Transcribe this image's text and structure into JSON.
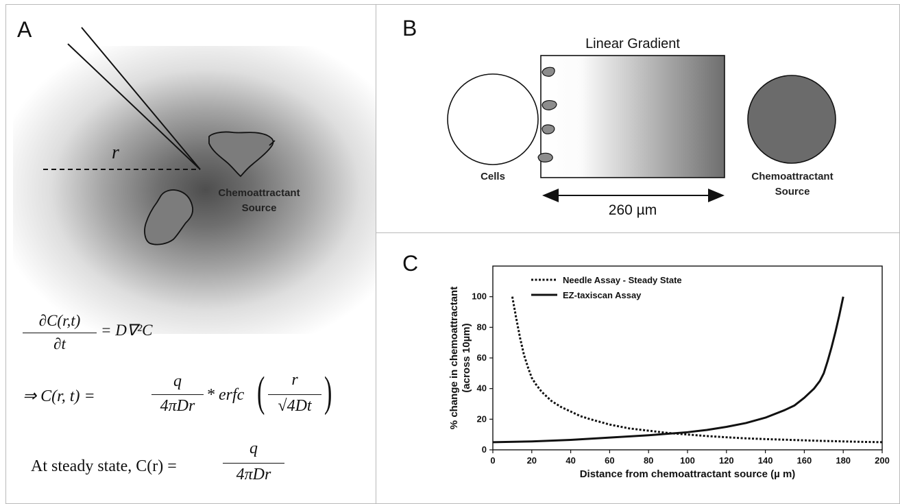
{
  "panel_a": {
    "letter": "A",
    "r_label": "r",
    "source_line1": "Chemoattractant",
    "source_line2": "Source",
    "eq1_lhs_num": "∂C(r,t)",
    "eq1_lhs_den": "∂t",
    "eq1_rhs": "= D∇²C",
    "eq2_prefix": "⇒ C(r, t) =",
    "eq2_frac_num": "q",
    "eq2_frac_den": "4πDr",
    "eq2_erfc": "* erfc",
    "eq2_inner_num": "r",
    "eq2_inner_den": "√4Dt",
    "eq3_prefix": "At steady state, C(r) =",
    "eq3_frac_num": "q",
    "eq3_frac_den": "4πDr"
  },
  "panel_b": {
    "letter": "B",
    "title": "Linear Gradient",
    "cells_label": "Cells",
    "source_line1": "Chemoattractant",
    "source_line2": "Source",
    "distance_label": "260 µm",
    "colors": {
      "gradient_dark": "#6e6e6e",
      "source_fill": "#6b6b6b",
      "cell_fill": "#8c8c8c"
    }
  },
  "panel_c": {
    "letter": "C"
  },
  "chart_data": {
    "type": "line",
    "xlabel": "Distance from chemoattractant source (µ m)",
    "ylabel_line1": "% change in chemoattractant",
    "ylabel_line2": "(across 10µm)",
    "xlim": [
      0,
      200
    ],
    "ylim": [
      0,
      120
    ],
    "x_ticks": [
      "0",
      "20",
      "40",
      "60",
      "80",
      "100",
      "120",
      "140",
      "160",
      "180",
      "200"
    ],
    "y_ticks": [
      "0",
      "20",
      "40",
      "60",
      "80",
      "100"
    ],
    "legend_position": "top-left",
    "series": [
      {
        "name": "Needle Assay - Steady State",
        "style": "dotted",
        "x": [
          10,
          12,
          14,
          16,
          18,
          20,
          22,
          25,
          30,
          35,
          40,
          45,
          50,
          60,
          70,
          80,
          90,
          100,
          110,
          120,
          130,
          140,
          150,
          160,
          170,
          180,
          190,
          200
        ],
        "y": [
          100,
          86,
          73,
          62,
          54,
          47,
          43,
          38,
          32,
          28,
          25,
          22,
          20,
          16.5,
          14,
          12.5,
          11,
          10,
          9,
          8.2,
          7.5,
          7,
          6.6,
          6.2,
          5.8,
          5.5,
          5.2,
          5
        ]
      },
      {
        "name": "EZ-taxiscan Assay",
        "style": "solid",
        "x": [
          0,
          20,
          40,
          60,
          80,
          100,
          110,
          120,
          130,
          140,
          150,
          155,
          160,
          165,
          168,
          170,
          172,
          174,
          176,
          178,
          180
        ],
        "y": [
          5,
          5.5,
          6.5,
          8,
          9.5,
          11.5,
          13,
          15,
          17.5,
          21,
          26,
          29,
          34,
          40,
          45,
          50,
          58,
          67,
          77,
          88,
          100
        ]
      }
    ]
  }
}
